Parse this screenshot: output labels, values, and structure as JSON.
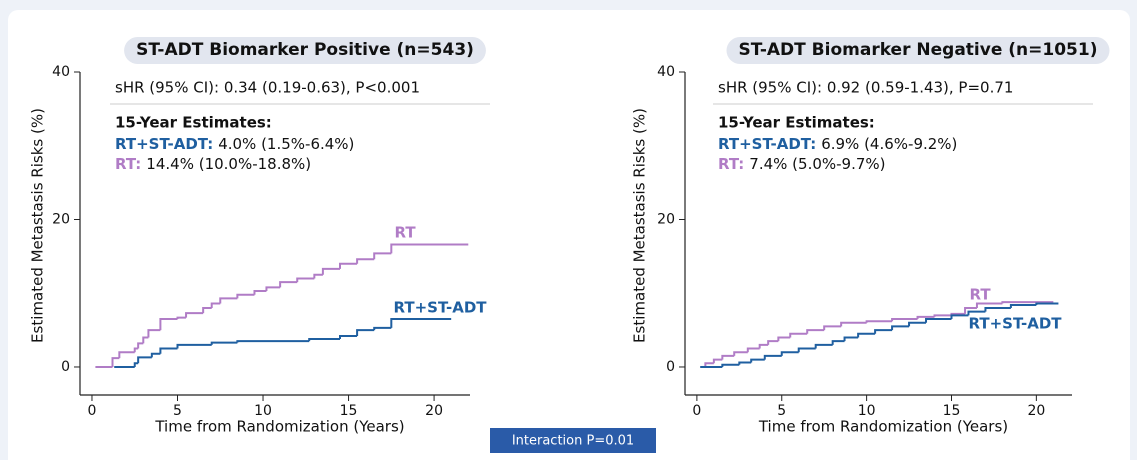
{
  "chart_data": [
    {
      "type": "line",
      "step": "post",
      "title": "ST-ADT Biomarker Positive (n=543)",
      "subtitle": "sHR (95% CI): 0.34 (0.19-0.63), P<0.001",
      "estimates_title": "15-Year Estimates:",
      "estimates": [
        {
          "label": "RT+ST-ADT:",
          "text": "4.0% (1.5%-6.4%)",
          "color": "#1f5fa0"
        },
        {
          "label": "RT:",
          "text": "14.4% (10.0%-18.8%)",
          "color": "#b07cc6"
        }
      ],
      "x_label": "Time from Randomization (Years)",
      "y_label": "Estimated Metastasis Risks (%)",
      "xlim": [
        -0.7,
        22.1
      ],
      "ylim": [
        -3.8,
        40
      ],
      "xticks": [
        0,
        5,
        10,
        15,
        20
      ],
      "yticks": [
        0,
        20,
        40
      ],
      "series": [
        {
          "name": "RT",
          "color": "#b07cc6",
          "x": [
            0.2,
            1.2,
            1.6,
            2.5,
            2.7,
            3.0,
            3.3,
            4.0,
            5.0,
            5.5,
            6.5,
            7.0,
            7.5,
            8.5,
            9.5,
            10.2,
            11.0,
            12.0,
            13.0,
            13.5,
            14.5,
            15.5,
            16.5,
            17.5,
            22.0
          ],
          "values": [
            0,
            1.2,
            2.0,
            2.5,
            3.2,
            4.0,
            5.0,
            6.5,
            6.7,
            7.3,
            8.0,
            8.6,
            9.3,
            9.8,
            10.3,
            10.8,
            11.5,
            12.0,
            12.5,
            13.3,
            14.0,
            14.6,
            15.4,
            16.6,
            16.6
          ]
        },
        {
          "name": "RT+ST-ADT",
          "color": "#1f5fa0",
          "x": [
            1.3,
            2.5,
            2.7,
            3.5,
            4.0,
            5.0,
            7.0,
            8.5,
            12.7,
            14.5,
            15.5,
            16.5,
            17.5,
            21.0
          ],
          "values": [
            0,
            0.5,
            1.3,
            1.8,
            2.5,
            3.0,
            3.3,
            3.5,
            3.8,
            4.2,
            5.0,
            5.3,
            6.5,
            6.5
          ]
        }
      ]
    },
    {
      "type": "line",
      "step": "post",
      "title": "ST-ADT Biomarker Negative (n=1051)",
      "subtitle": "sHR (95% CI): 0.92 (0.59-1.43), P=0.71",
      "estimates_title": "15-Year Estimates:",
      "estimates": [
        {
          "label": "RT+ST-ADT:",
          "text": "6.9% (4.6%-9.2%)",
          "color": "#1f5fa0"
        },
        {
          "label": "RT:",
          "text": "7.4% (5.0%-9.7%)",
          "color": "#b07cc6"
        }
      ],
      "x_label": "Time from Randomization (Years)",
      "y_label": "Estimated Metastasis Risks (%)",
      "xlim": [
        -0.7,
        22.1
      ],
      "ylim": [
        -3.8,
        40
      ],
      "xticks": [
        0,
        5,
        10,
        15,
        20
      ],
      "yticks": [
        0,
        20,
        40
      ],
      "series": [
        {
          "name": "RT",
          "color": "#b07cc6",
          "x": [
            0.2,
            0.5,
            1.0,
            1.5,
            2.2,
            3.0,
            3.7,
            4.2,
            4.8,
            5.5,
            6.5,
            7.5,
            8.5,
            10.0,
            11.5,
            13.0,
            14.0,
            15.0,
            15.8,
            16.5,
            18.0,
            21.0
          ],
          "values": [
            0,
            0.5,
            1.0,
            1.5,
            2.0,
            2.5,
            3.0,
            3.5,
            4.0,
            4.5,
            5.0,
            5.5,
            6.0,
            6.2,
            6.5,
            6.8,
            7.0,
            7.2,
            8.0,
            8.6,
            8.8,
            8.8
          ]
        },
        {
          "name": "RT+ST-ADT",
          "color": "#1f5fa0",
          "x": [
            0.2,
            1.5,
            2.5,
            3.2,
            4.0,
            5.0,
            6.0,
            7.0,
            8.0,
            8.7,
            9.5,
            10.5,
            11.5,
            12.5,
            13.5,
            15.0,
            16.0,
            17.0,
            18.5,
            20.0,
            21.3
          ],
          "values": [
            0,
            0.3,
            0.6,
            1.0,
            1.5,
            2.0,
            2.5,
            3.0,
            3.5,
            4.0,
            4.5,
            5.0,
            5.5,
            6.0,
            6.5,
            7.0,
            7.5,
            8.0,
            8.4,
            8.6,
            8.6
          ]
        }
      ]
    }
  ],
  "annotation": "Interaction P=0.01"
}
